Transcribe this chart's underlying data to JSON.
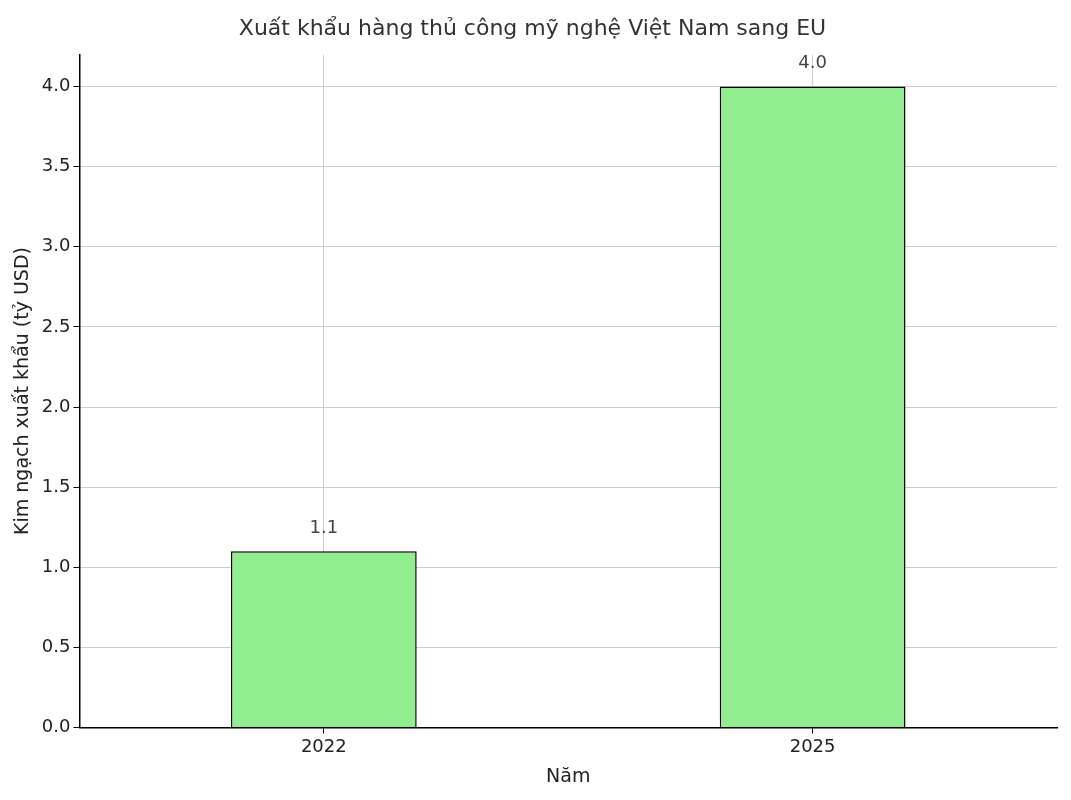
{
  "chart_data": {
    "type": "bar",
    "title": "Xuất khẩu hàng thủ công mỹ nghệ Việt Nam sang EU",
    "xlabel": "Năm",
    "ylabel": "Kim ngạch xuất khẩu (tỷ USD)",
    "categories": [
      "2022",
      "2025"
    ],
    "series": [
      {
        "color": "#90ee90",
        "values": [
          1.1,
          4.0
        ],
        "value_labels": [
          "1.1",
          "4.0"
        ]
      }
    ],
    "ylim": [
      0,
      4.2
    ],
    "yticks": [
      {
        "value": 0,
        "label": "0.0"
      },
      {
        "value": 0.5,
        "label": "0.5"
      },
      {
        "value": 1,
        "label": "1.0"
      },
      {
        "value": 1.5,
        "label": "1.5"
      },
      {
        "value": 2,
        "label": "2.0"
      },
      {
        "value": 2.5,
        "label": "2.5"
      },
      {
        "value": 3,
        "label": "3.0"
      },
      {
        "value": 3.5,
        "label": "3.5"
      },
      {
        "value": 4,
        "label": "4.0"
      }
    ],
    "grid": true,
    "legend": false
  }
}
